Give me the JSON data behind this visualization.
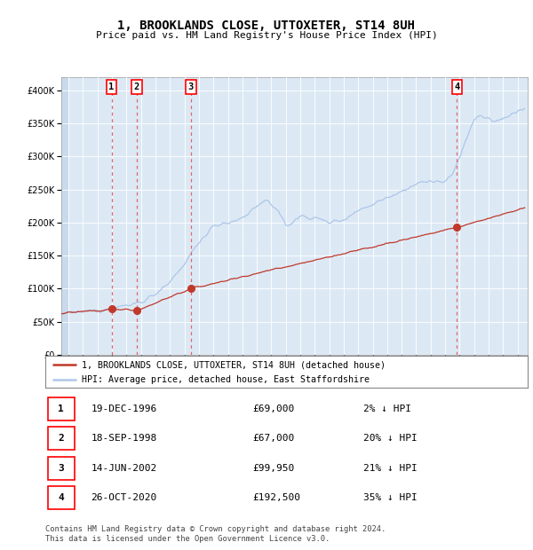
{
  "title": "1, BROOKLANDS CLOSE, UTTOXETER, ST14 8UH",
  "subtitle": "Price paid vs. HM Land Registry's House Price Index (HPI)",
  "legend_line1": "1, BROOKLANDS CLOSE, UTTOXETER, ST14 8UH (detached house)",
  "legend_line2": "HPI: Average price, detached house, East Staffordshire",
  "footnote1": "Contains HM Land Registry data © Crown copyright and database right 2024.",
  "footnote2": "This data is licensed under the Open Government Licence v3.0.",
  "transactions": [
    {
      "num": 1,
      "date": "19-DEC-1996",
      "price": 69000,
      "pct": "2%",
      "date_val": 1996.97
    },
    {
      "num": 2,
      "date": "18-SEP-1998",
      "price": 67000,
      "pct": "20%",
      "date_val": 1998.71
    },
    {
      "num": 3,
      "date": "14-JUN-2002",
      "price": 99950,
      "pct": "21%",
      "date_val": 2002.45
    },
    {
      "num": 4,
      "date": "26-OCT-2020",
      "price": 192500,
      "pct": "35%",
      "date_val": 2020.82
    }
  ],
  "hpi_color": "#aec6e8",
  "price_color": "#c0392b",
  "dot_color": "#c0392b",
  "vline_color": "#e05050",
  "background_color": "#dce9f5",
  "ylim": [
    0,
    420000
  ],
  "yticks": [
    0,
    50000,
    100000,
    150000,
    200000,
    250000,
    300000,
    350000,
    400000
  ],
  "xlim_start": 1993.5,
  "xlim_end": 2025.7,
  "xticks": [
    1994,
    1995,
    1996,
    1997,
    1998,
    1999,
    2000,
    2001,
    2002,
    2003,
    2004,
    2005,
    2006,
    2007,
    2008,
    2009,
    2010,
    2011,
    2012,
    2013,
    2014,
    2015,
    2016,
    2017,
    2018,
    2019,
    2020,
    2021,
    2022,
    2023,
    2024,
    2025
  ]
}
